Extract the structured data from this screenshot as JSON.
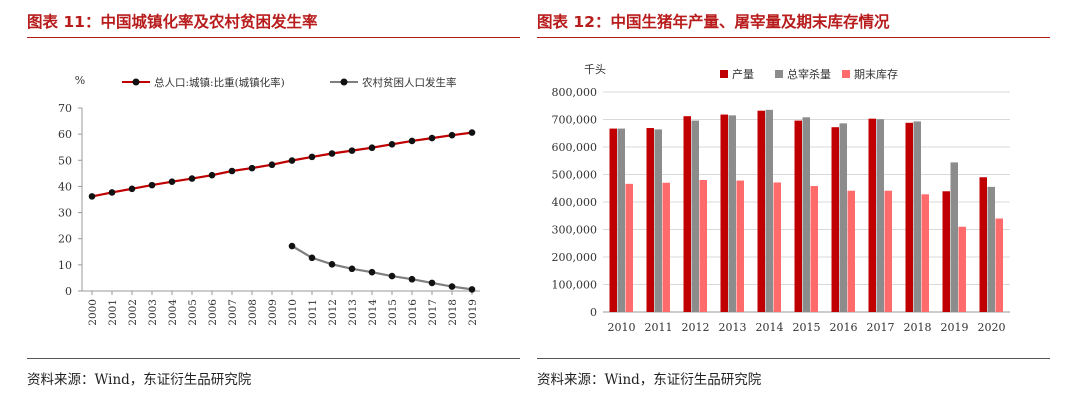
{
  "left": {
    "title": "图表 11：中国城镇化率及农村贫困发生率",
    "source": "资料来源：Wind，东证衍生品研究院",
    "chart_data": {
      "type": "line",
      "unit": "%",
      "x": [
        "2000",
        "2001",
        "2002",
        "2003",
        "2004",
        "2005",
        "2006",
        "2007",
        "2008",
        "2009",
        "2010",
        "2011",
        "2012",
        "2013",
        "2014",
        "2015",
        "2016",
        "2017",
        "2018",
        "2019"
      ],
      "ylim": [
        0,
        70
      ],
      "yticks": [
        "0",
        "10",
        "20",
        "30",
        "40",
        "50",
        "60",
        "70"
      ],
      "series": [
        {
          "name": "总人口:城镇:比重(城镇化率)",
          "color": "#c00000",
          "values": [
            36.2,
            37.7,
            39.1,
            40.5,
            41.8,
            43.0,
            44.3,
            45.9,
            47.0,
            48.3,
            49.9,
            51.3,
            52.6,
            53.7,
            54.8,
            56.1,
            57.4,
            58.5,
            59.6,
            60.6
          ]
        },
        {
          "name": "农村贫困人口发生率",
          "color": "#7f7f7f",
          "values": [
            null,
            null,
            null,
            null,
            null,
            null,
            null,
            null,
            null,
            null,
            17.2,
            12.7,
            10.2,
            8.5,
            7.2,
            5.7,
            4.5,
            3.1,
            1.7,
            0.6
          ]
        }
      ],
      "grid": false,
      "legend_position": "top"
    }
  },
  "right": {
    "title": "图表 12：中国生猪年产量、屠宰量及期末库存情况",
    "source": "资料来源：Wind，东证衍生品研究院",
    "chart_data": {
      "type": "bar",
      "unit": "千头",
      "categories": [
        "2010",
        "2011",
        "2012",
        "2013",
        "2014",
        "2015",
        "2016",
        "2017",
        "2018",
        "2019",
        "2020"
      ],
      "ylim": [
        0,
        800000
      ],
      "yticks": [
        "0",
        "100,000",
        "200,000",
        "300,000",
        "400,000",
        "500,000",
        "600,000",
        "700,000",
        "800,000"
      ],
      "series": [
        {
          "name": "产量",
          "color": "#c00000",
          "values": [
            667000,
            669000,
            712000,
            718000,
            732000,
            696000,
            672000,
            703000,
            688000,
            439000,
            490000
          ]
        },
        {
          "name": "总宰杀量",
          "color": "#8c8c8c",
          "values": [
            667000,
            664000,
            696000,
            715000,
            735000,
            708000,
            686000,
            701000,
            693000,
            544000,
            455000
          ]
        },
        {
          "name": "期末库存",
          "color": "#ff6b6b",
          "values": [
            466000,
            470000,
            480000,
            478000,
            471000,
            458000,
            441000,
            441000,
            428000,
            310000,
            340000
          ]
        }
      ],
      "grid": true,
      "legend_position": "top"
    }
  }
}
